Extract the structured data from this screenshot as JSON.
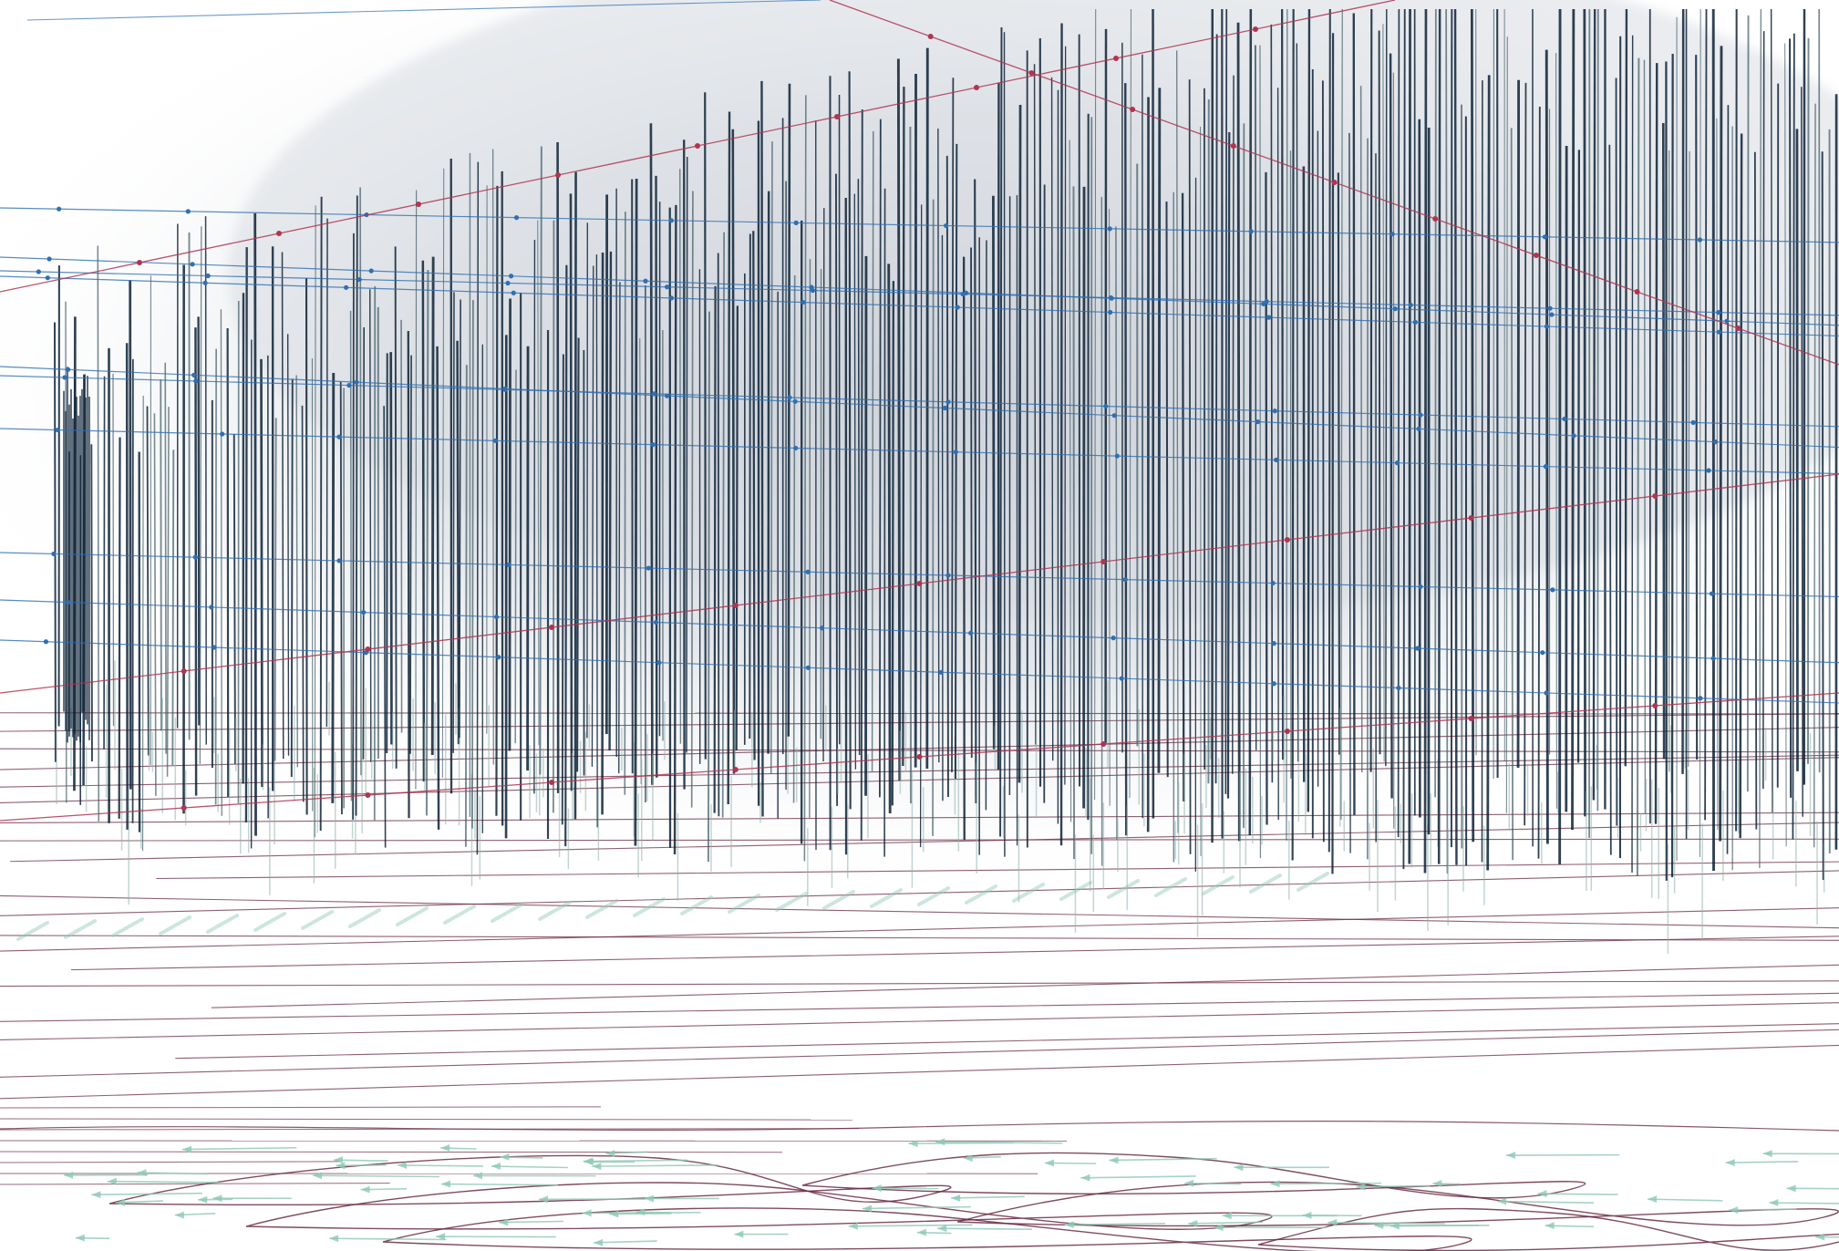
{
  "image": {
    "kind": "abstract generative line artwork",
    "palette": {
      "background": "#ffffff",
      "haze": "#c9ced6",
      "spike_dark": "#0d2236",
      "spike_light": "#3f5a64",
      "spike_ghost": "#8fb3ad",
      "blue_line": "#2f6fb3",
      "red_line": "#b0354f",
      "maroon_line": "#6a2a44",
      "mint_line": "#8fc9b5"
    },
    "layers": [
      "gray-haze",
      "vertical-spike-field",
      "blue-dotted-lines",
      "red-diagonal-lines",
      "maroon-horizontal-lines",
      "wave-loops",
      "mint-arrow-strokes"
    ]
  }
}
